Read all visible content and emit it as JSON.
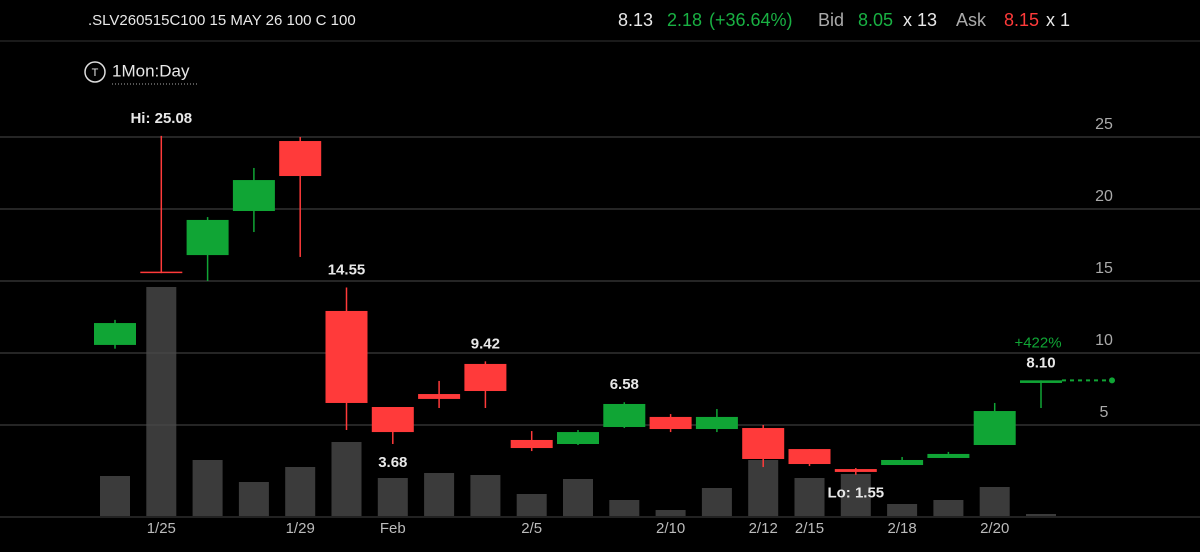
{
  "quote": {
    "symbol": ".SLV260515C100 15 MAY 26 100 C 100",
    "last": 8.13,
    "change": 2.18,
    "change_pct": {
      "value": 36.64,
      "label": "(+36.64%)"
    },
    "bid_label": "Bid",
    "bid": 8.05,
    "bid_size": {
      "value": 13,
      "label": "x 13"
    },
    "ask_label": "Ask",
    "ask": 8.15,
    "ask_size": {
      "value": 1,
      "label": "x 1"
    }
  },
  "chart_data": {
    "type": "candlestick",
    "timeframe_icon": "T",
    "timeframe": "1Mon:Day",
    "categories": [
      null,
      "1/25",
      null,
      null,
      "1/29",
      null,
      "Feb",
      null,
      null,
      "2/5",
      null,
      null,
      "2/10",
      null,
      "2/12",
      "2/15",
      null,
      "2/18",
      null,
      "2/20",
      null
    ],
    "open": [
      10.56,
      15.65,
      16.8,
      19.86,
      24.72,
      12.92,
      6.25,
      7.15,
      9.24,
      3.96,
      3.68,
      4.86,
      5.56,
      4.72,
      4.79,
      3.33,
      1.94,
      2.22,
      2.71,
      3.61,
      7.92
    ],
    "high": [
      12.3,
      25.08,
      19.44,
      22.85,
      25.0,
      14.55,
      6.25,
      8.06,
      9.42,
      4.58,
      4.65,
      6.58,
      5.76,
      6.11,
      5.0,
      3.33,
      2.01,
      2.78,
      3.13,
      6.53,
      8.1
    ],
    "low": [
      10.3,
      15.55,
      15.0,
      18.4,
      16.67,
      4.65,
      3.68,
      6.18,
      6.18,
      3.19,
      3.61,
      4.79,
      4.51,
      4.51,
      2.08,
      2.15,
      1.55,
      2.22,
      2.71,
      3.61,
      6.18
    ],
    "close": [
      12.08,
      15.6,
      19.24,
      22.01,
      22.29,
      6.53,
      4.51,
      6.81,
      7.36,
      3.4,
      4.51,
      6.46,
      4.72,
      5.56,
      2.64,
      2.29,
      1.74,
      2.57,
      2.99,
      5.97,
      8.1
    ],
    "volume": [
      40,
      229,
      56,
      34,
      49,
      74,
      38,
      43,
      41,
      22,
      37,
      16,
      6,
      28,
      56,
      38,
      42,
      12,
      16,
      29,
      2
    ],
    "high_labels": [
      null,
      "Hi: 25.08",
      null,
      null,
      null,
      "14.55",
      null,
      null,
      "9.42",
      null,
      null,
      "6.58",
      null,
      null,
      null,
      null,
      null,
      null,
      null,
      null,
      "8.10"
    ],
    "low_labels": [
      null,
      null,
      null,
      null,
      null,
      null,
      "3.68",
      null,
      null,
      null,
      null,
      null,
      null,
      null,
      null,
      null,
      "Lo: 1.55",
      null,
      null,
      null,
      null
    ],
    "return_label": {
      "value": 422,
      "label": "+422%"
    },
    "ylim": [
      0,
      25
    ],
    "yticks": [
      5,
      10,
      15,
      20,
      25
    ],
    "grid": true,
    "up_color": "#10a535",
    "down_color": "#ff3a3a",
    "volume_color": "#3b3b3b"
  }
}
